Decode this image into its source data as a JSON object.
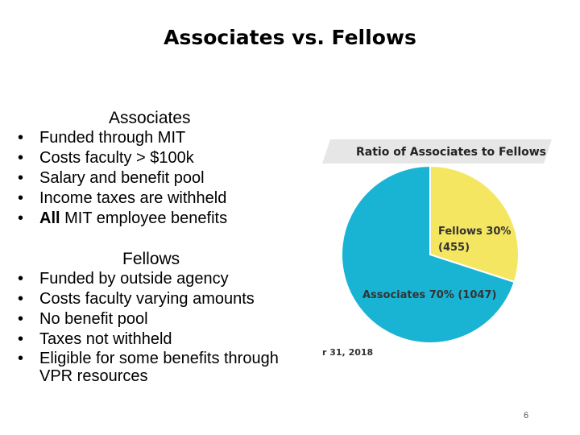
{
  "slide": {
    "title": "Associates vs. Fellows",
    "page_number": "6"
  },
  "associates": {
    "heading": "Associates",
    "items": [
      {
        "bold": "",
        "text": "Funded through MIT"
      },
      {
        "bold": "",
        "text": "Costs faculty > $100k"
      },
      {
        "bold": "",
        "text": "Salary and benefit pool"
      },
      {
        "bold": "",
        "text": "Income taxes are withheld"
      },
      {
        "bold": "All",
        "text": " MIT employee benefits"
      }
    ]
  },
  "fellows": {
    "heading": "Fellows",
    "items": [
      {
        "text": "Funded by outside agency"
      },
      {
        "text": "Costs faculty varying amounts"
      },
      {
        "text": "No benefit pool"
      },
      {
        "text": "Taxes not withheld"
      },
      {
        "text": "Eligible for some benefits through VPR resources"
      }
    ]
  },
  "chart_data": {
    "type": "pie",
    "title": "Ratio of Associates to Fellows",
    "footnote": "r 31, 2018",
    "slices": [
      {
        "label": "Fellows 30%",
        "sublabel": "(455)",
        "percent": 30,
        "count": 455,
        "color": "#f4e660"
      },
      {
        "label": "Associates 70% (1047)",
        "sublabel": "",
        "percent": 70,
        "count": 1047,
        "color": "#19b3d3"
      }
    ],
    "colors": {
      "title_banner": "#e6e6e6",
      "separator": "#ffffff",
      "label_text": "#333333"
    }
  }
}
